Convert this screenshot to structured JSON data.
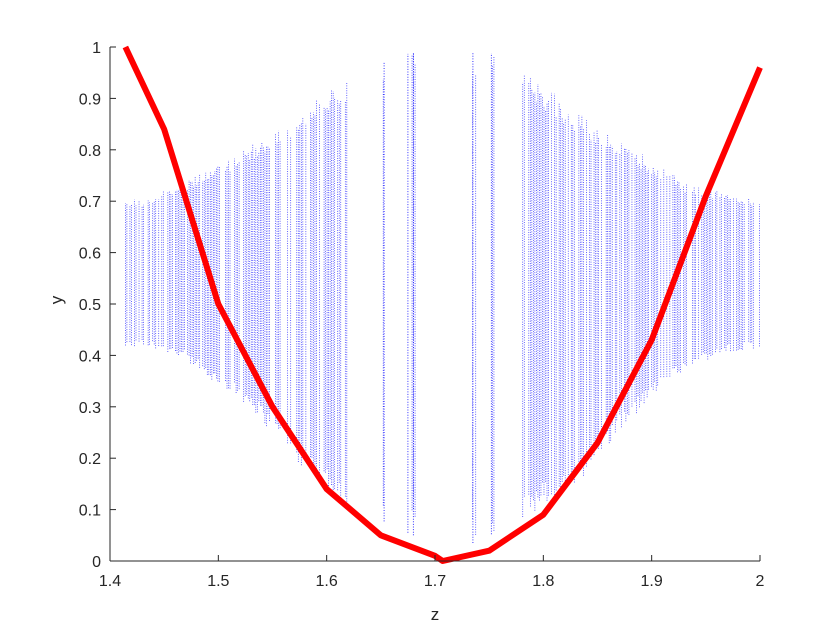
{
  "chart_data": {
    "type": "scatter",
    "title": "",
    "xlabel": "z",
    "ylabel": "y",
    "xlim": [
      1.4,
      2.0
    ],
    "ylim": [
      0,
      1
    ],
    "xticks": [
      "1.4",
      "1.5",
      "1.6",
      "1.7",
      "1.8",
      "1.9",
      "2"
    ],
    "yticks": [
      "0",
      "0.1",
      "0.2",
      "0.3",
      "0.4",
      "0.5",
      "0.6",
      "0.7",
      "0.8",
      "0.9",
      "1"
    ],
    "grid": false,
    "legend": "none",
    "series": [
      {
        "kind": "scatter",
        "color": "#0000ff",
        "x_range": [
          1.4142,
          2.0
        ],
        "y_envelope": {
          "x": [
            1.4142,
            1.43,
            1.45,
            1.47,
            1.5,
            1.53,
            1.56,
            1.59,
            1.62,
            1.65,
            1.68,
            1.7,
            1.72,
            1.75,
            1.78,
            1.81,
            1.84,
            1.87,
            1.9,
            1.93,
            1.96,
            1.98,
            2.0
          ],
          "y_min": [
            0.414,
            0.414,
            0.41,
            0.39,
            0.34,
            0.3,
            0.22,
            0.15,
            0.1,
            0.08,
            0.05,
            0.02,
            0.02,
            0.05,
            0.08,
            0.12,
            0.17,
            0.25,
            0.32,
            0.37,
            0.4,
            0.41,
            0.414
          ],
          "y_max": [
            0.707,
            0.707,
            0.72,
            0.74,
            0.77,
            0.81,
            0.85,
            0.9,
            0.94,
            0.97,
            0.99,
            0.99,
            0.99,
            0.99,
            0.96,
            0.91,
            0.86,
            0.82,
            0.78,
            0.74,
            0.72,
            0.71,
            0.707
          ]
        },
        "gaps": [
          [
            1.62,
            1.65
          ],
          [
            1.656,
            1.673
          ],
          [
            1.685,
            1.733
          ],
          [
            1.738,
            1.749
          ],
          [
            1.755,
            1.78
          ]
        ],
        "isolated_lines": [
          1.653,
          1.675,
          1.68,
          1.735,
          1.752
        ]
      },
      {
        "kind": "line",
        "color": "#ff0000",
        "x": [
          1.4142,
          1.45,
          1.5,
          1.55,
          1.6,
          1.65,
          1.7,
          1.7071,
          1.75,
          1.8,
          1.85,
          1.9,
          1.95,
          2.0
        ],
        "y": [
          1.0,
          0.84,
          0.5,
          0.3,
          0.14,
          0.05,
          0.01,
          0.0,
          0.02,
          0.09,
          0.23,
          0.43,
          0.71,
          0.96
        ]
      }
    ]
  }
}
